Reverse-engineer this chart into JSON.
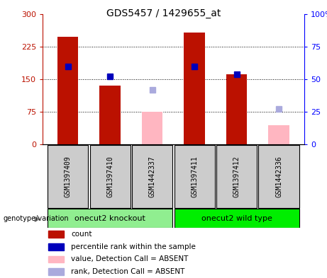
{
  "title": "GDS5457 / 1429655_at",
  "samples": [
    "GSM1397409",
    "GSM1397410",
    "GSM1442337",
    "GSM1397411",
    "GSM1397412",
    "GSM1442336"
  ],
  "red_bars": [
    248,
    135,
    0,
    258,
    162,
    0
  ],
  "pink_bars": [
    0,
    0,
    75,
    0,
    0,
    45
  ],
  "blue_squares_pct": [
    60,
    52,
    null,
    60,
    54,
    null
  ],
  "lightblue_squares_pct": [
    null,
    null,
    42,
    null,
    null,
    27
  ],
  "ylim_left": [
    0,
    300
  ],
  "ylim_right": [
    0,
    100
  ],
  "yticks_left": [
    0,
    75,
    150,
    225,
    300
  ],
  "yticks_right": [
    0,
    25,
    50,
    75,
    100
  ],
  "groups": [
    {
      "label": "onecut2 knockout",
      "indices": [
        0,
        1,
        2
      ],
      "color": "#90EE90"
    },
    {
      "label": "onecut2 wild type",
      "indices": [
        3,
        4,
        5
      ],
      "color": "#00EE00"
    }
  ],
  "bar_width": 0.5,
  "red_color": "#BB1100",
  "pink_color": "#FFB6C1",
  "blue_color": "#0000BB",
  "lightblue_color": "#AAAADD",
  "sample_box_color": "#CCCCCC",
  "group1_color": "#90EE90",
  "group2_color": "#00EE00",
  "legend_items": [
    {
      "color": "#BB1100",
      "label": "count"
    },
    {
      "color": "#0000BB",
      "label": "percentile rank within the sample"
    },
    {
      "color": "#FFB6C1",
      "label": "value, Detection Call = ABSENT"
    },
    {
      "color": "#AAAADD",
      "label": "rank, Detection Call = ABSENT"
    }
  ]
}
